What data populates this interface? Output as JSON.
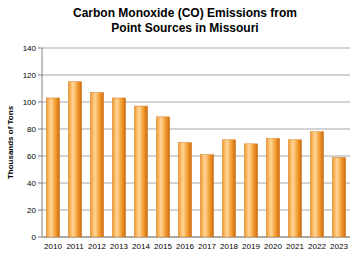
{
  "chart_data": {
    "type": "bar",
    "title": "Carbon Monoxide (CO) Emissions from Point Sources in Missouri",
    "ylabel": "Thousands of Tons",
    "categories": [
      "2010",
      "2011",
      "2012",
      "2013",
      "2014",
      "2015",
      "2016",
      "2017",
      "2018",
      "2019",
      "2020",
      "2021",
      "2022",
      "2023"
    ],
    "values": [
      103,
      115,
      107,
      103,
      97,
      89,
      70,
      61,
      72,
      69,
      73,
      72,
      78,
      59
    ],
    "color": "#f39a2e",
    "ylim": [
      0,
      140
    ],
    "yticks": [
      0,
      20,
      40,
      60,
      80,
      100,
      120,
      140
    ],
    "grid": true
  }
}
